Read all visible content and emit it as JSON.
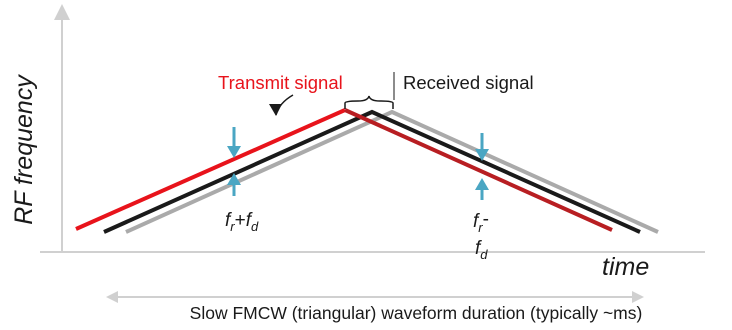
{
  "diagram": {
    "y_axis_label": "RF frequency",
    "x_axis_label": "time",
    "transmit_label": "Transmit signal",
    "received_label": "Received signal",
    "beat_up": {
      "f": "f",
      "sub_r": "r",
      "plus": "+",
      "f2": "f",
      "sub_d": "d"
    },
    "beat_down": {
      "f": "f",
      "sub_r": "r",
      "minus": "-",
      "f2": "f",
      "sub_d": "d"
    },
    "duration_label": "Slow FMCW (triangular) waveform duration (typically ~ms)"
  },
  "colors": {
    "transmit": "#e8131b",
    "transmit_down": "#b81e22",
    "delayed": "#1a1a1a",
    "received": "#aaaaaa",
    "arrow_blue": "#4aa6c3",
    "axis": "#d0d0d0"
  }
}
